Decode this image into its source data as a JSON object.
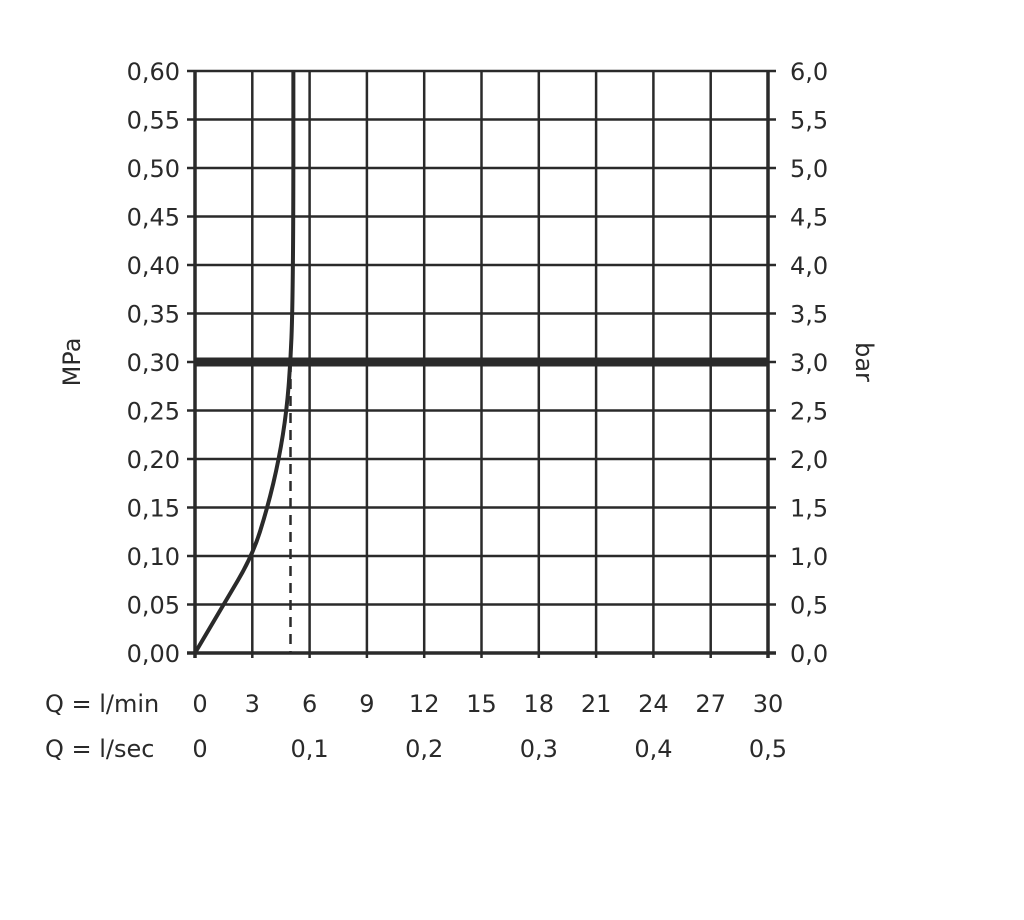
{
  "chart_data": {
    "type": "line",
    "ylabel_left": "MPa",
    "ylabel_right": "bar",
    "xlabel_rows": [
      "Q = l/min",
      "Q = l/sec"
    ],
    "xlim": [
      0,
      30
    ],
    "ylim": [
      0,
      0.6
    ],
    "grid": true,
    "x_ticks": [
      "0",
      "3",
      "6",
      "9",
      "12",
      "15",
      "18",
      "21",
      "24",
      "27",
      "30"
    ],
    "x_ticks_values": [
      0,
      3,
      6,
      9,
      12,
      15,
      18,
      21,
      24,
      27,
      30
    ],
    "x2_ticks": [
      "0",
      "0,1",
      "0,2",
      "0,3",
      "0,4",
      "0,5"
    ],
    "x2_ticks_values": [
      0,
      6,
      12,
      18,
      24,
      30
    ],
    "y_ticks": [
      "0,00",
      "0,05",
      "0,10",
      "0,15",
      "0,20",
      "0,25",
      "0,30",
      "0,35",
      "0,40",
      "0,45",
      "0,50",
      "0,55",
      "0,60"
    ],
    "y_ticks_values": [
      0,
      0.05,
      0.1,
      0.15,
      0.2,
      0.25,
      0.3,
      0.35,
      0.4,
      0.45,
      0.5,
      0.55,
      0.6
    ],
    "y2_ticks": [
      "0,0",
      "0,5",
      "1,0",
      "1,5",
      "2,0",
      "2,5",
      "3,0",
      "3,5",
      "4,0",
      "4,5",
      "5,0",
      "5,5",
      "6,0"
    ],
    "series": [
      {
        "x": [
          0,
          1.5,
          3.0,
          3.8,
          4.4,
          4.8,
          5.0,
          5.1,
          5.15,
          5.15
        ],
        "y": [
          0,
          0.05,
          0.1,
          0.15,
          0.2,
          0.25,
          0.3,
          0.35,
          0.45,
          0.6
        ]
      }
    ],
    "reference_lines": [
      {
        "orientation": "horizontal",
        "y": 0.3,
        "style": "thick"
      },
      {
        "orientation": "vertical",
        "x": 5.0,
        "y_to": 0.3,
        "style": "dashed"
      }
    ],
    "color": "#2a2a2a"
  }
}
